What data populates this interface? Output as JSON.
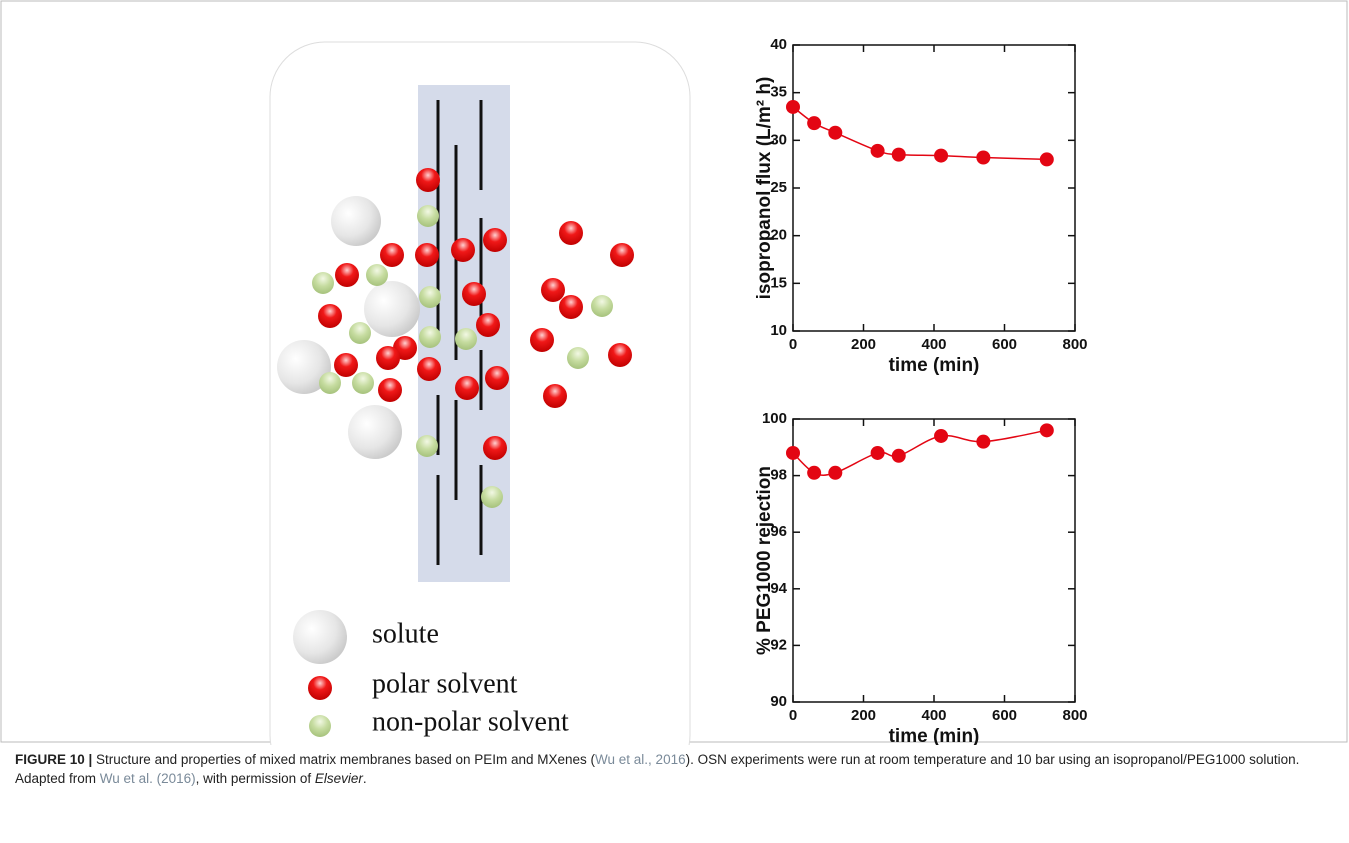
{
  "diagram": {
    "legend": [
      "solute",
      "polar solvent",
      "non-polar solvent"
    ]
  },
  "chart_data": [
    {
      "type": "line",
      "markers": true,
      "color": "#e30613",
      "x": [
        0,
        60,
        120,
        240,
        300,
        420,
        540,
        720
      ],
      "values": [
        33.5,
        31.8,
        30.8,
        28.9,
        28.5,
        28.4,
        28.2,
        28.0
      ],
      "xlabel": "time (min)",
      "ylabel": "isopropanol flux (L/m² h)",
      "xlim": [
        0,
        800
      ],
      "xticks": [
        0,
        200,
        400,
        600,
        800
      ],
      "ylim": [
        10,
        40
      ],
      "yticks": [
        10,
        15,
        20,
        25,
        30,
        35,
        40
      ]
    },
    {
      "type": "line",
      "markers": true,
      "color": "#e30613",
      "x": [
        0,
        60,
        120,
        240,
        300,
        420,
        540,
        720
      ],
      "values": [
        98.8,
        98.1,
        98.1,
        98.8,
        98.7,
        99.4,
        99.2,
        99.6
      ],
      "xlabel": "time (min)",
      "ylabel": "% PEG1000 rejection",
      "xlim": [
        0,
        800
      ],
      "xticks": [
        0,
        200,
        400,
        600,
        800
      ],
      "ylim": [
        90,
        100
      ],
      "yticks": [
        90,
        92,
        94,
        96,
        98,
        100
      ]
    }
  ],
  "caption": {
    "label": "FIGURE 10 |",
    "parts": [
      " Structure and properties of mixed matrix membranes based on PEIm and MXenes (",
      "Wu et al., 2016",
      "). OSN experiments were run at room temperature and 10 bar using an isopropanol/PEG1000 solution. Adapted from ",
      "Wu et al. (2016)",
      ", with permission of ",
      "Elsevier",
      "."
    ]
  }
}
